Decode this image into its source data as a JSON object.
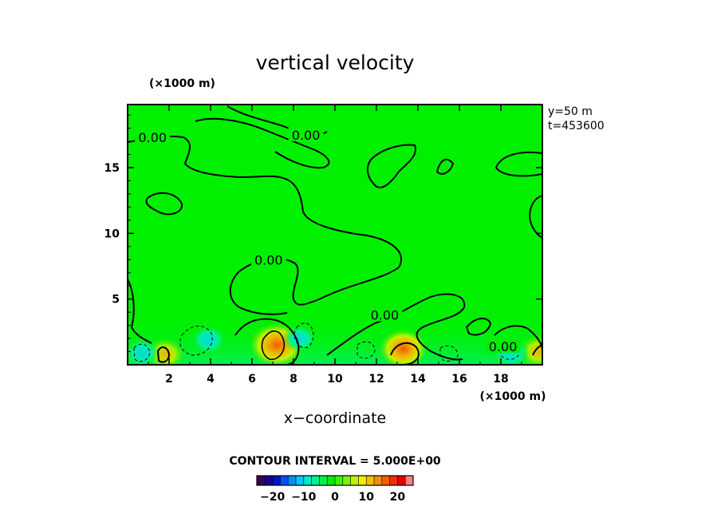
{
  "chart_data": {
    "type": "heatmap",
    "title": "vertical velocity",
    "xlabel": "x−coordinate",
    "x_unit": "(×1000 m)",
    "y_unit": "(×1000 m)",
    "xlim": [
      0,
      20
    ],
    "ylim": [
      0,
      19.8
    ],
    "x_ticks": [
      2,
      4,
      6,
      8,
      10,
      12,
      14,
      16,
      18
    ],
    "y_ticks": [
      5,
      10,
      15
    ],
    "info_lines": [
      "y=50  m",
      "t=453600"
    ],
    "contour_interval_text": "CONTOUR INTERVAL = 5.000E+00",
    "colorbar": {
      "range": [
        -25,
        25
      ],
      "ticks": [
        -20,
        -10,
        0,
        10,
        20
      ],
      "tick_labels": [
        "−20",
        "−10",
        "0",
        "10",
        "20"
      ],
      "colors": [
        "#3a0057",
        "#1a0090",
        "#0010d0",
        "#0050ff",
        "#0090ff",
        "#00c8ff",
        "#00e8d0",
        "#00f090",
        "#00f050",
        "#00f000",
        "#40f000",
        "#80f000",
        "#c0f000",
        "#f0f000",
        "#f0c000",
        "#f09000",
        "#f06000",
        "#f03000",
        "#e00000",
        "#ff8080"
      ]
    },
    "contour_labels": [
      {
        "text": "0.00",
        "x": 1.2,
        "y": 17.3
      },
      {
        "text": "0.00",
        "x": 8.6,
        "y": 17.5
      },
      {
        "text": "0.00",
        "x": 6.8,
        "y": 8.0
      },
      {
        "text": "0.00",
        "x": 12.4,
        "y": 3.8
      },
      {
        "text": "0.00",
        "x": 18.1,
        "y": 1.4
      }
    ],
    "features": [
      {
        "kind": "positive",
        "x": 7.2,
        "y": 1.5,
        "peak": 15
      },
      {
        "kind": "positive",
        "x": 13.3,
        "y": 1.2,
        "peak": 12
      },
      {
        "kind": "positive",
        "x": 1.8,
        "y": 0.8,
        "peak": 8
      },
      {
        "kind": "positive",
        "x": 19.8,
        "y": 1.0,
        "peak": 8
      },
      {
        "kind": "negative",
        "x": 3.9,
        "y": 1.9,
        "peak": -6
      },
      {
        "kind": "negative",
        "x": 8.3,
        "y": 2.0,
        "peak": -5
      },
      {
        "kind": "negative",
        "x": 0.7,
        "y": 0.9,
        "peak": -6
      },
      {
        "kind": "negative",
        "x": 18.5,
        "y": 0.9,
        "peak": -7
      }
    ]
  }
}
